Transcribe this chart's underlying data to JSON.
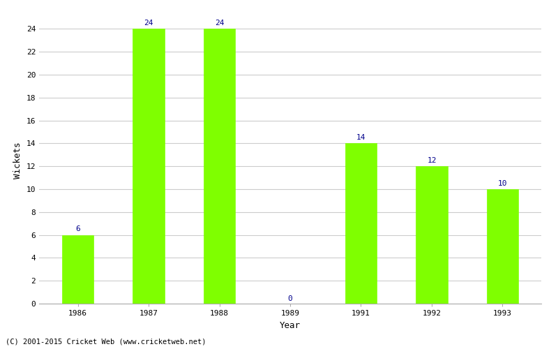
{
  "years": [
    "1986",
    "1987",
    "1988",
    "1989",
    "1991",
    "1992",
    "1993"
  ],
  "values": [
    6,
    24,
    24,
    0,
    14,
    12,
    10
  ],
  "bar_color": "#7fff00",
  "bar_edge_color": "#7fff00",
  "label_color": "#00008b",
  "label_fontsize": 8,
  "xlabel": "Year",
  "ylabel": "Wickets",
  "xlabel_fontsize": 9,
  "ylabel_fontsize": 9,
  "tick_fontsize": 8,
  "ylim": [
    0,
    25
  ],
  "yticks": [
    0,
    2,
    4,
    6,
    8,
    10,
    12,
    14,
    16,
    18,
    20,
    22,
    24
  ],
  "grid_color": "#cccccc",
  "bg_color": "#ffffff",
  "footer_text": "(C) 2001-2015 Cricket Web (www.cricketweb.net)",
  "footer_fontsize": 7.5,
  "footer_color": "#000000",
  "bar_width": 0.45
}
